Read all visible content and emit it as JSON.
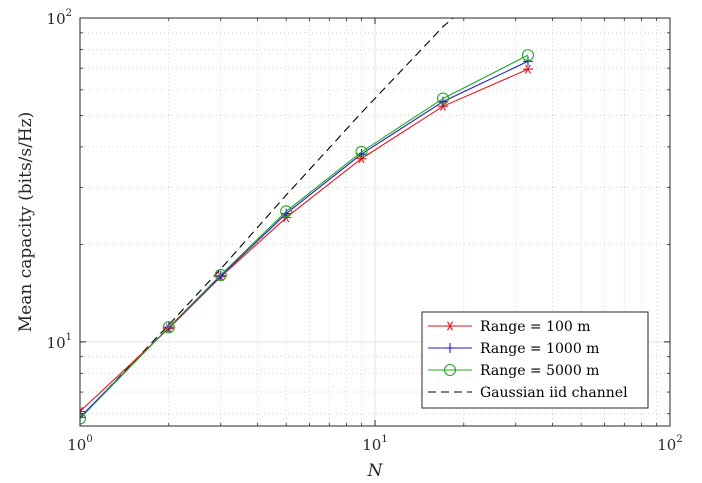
{
  "chart_data": {
    "type": "line",
    "title": "",
    "xlabel": "N",
    "ylabel": "Mean capacity (bits/s/Hz)",
    "xscale": "log",
    "yscale": "log",
    "xlim": [
      1,
      100
    ],
    "ylim": [
      5.5,
      100
    ],
    "grid": true,
    "minor_grid": true,
    "legend_position": "bottom-right",
    "x_ticks": [
      {
        "base": "10",
        "exp": "0",
        "value": 1
      },
      {
        "base": "10",
        "exp": "1",
        "value": 10
      },
      {
        "base": "10",
        "exp": "2",
        "value": 100
      }
    ],
    "y_ticks": [
      {
        "base": "10",
        "exp": "1",
        "value": 10
      },
      {
        "base": "10",
        "exp": "2",
        "value": 100
      }
    ],
    "series": [
      {
        "name": "Range = 100 m",
        "color": "#e8141e",
        "marker": "asterisk",
        "line": "solid",
        "x": [
          1,
          2,
          3,
          5,
          9,
          17,
          33
        ],
        "y": [
          6.1,
          11.0,
          15.9,
          24.2,
          36.8,
          53.4,
          69.5
        ]
      },
      {
        "name": "Range = 1000 m",
        "color": "#1c1ccc",
        "marker": "plus",
        "line": "solid",
        "x": [
          1,
          2,
          3,
          5,
          9,
          17,
          33
        ],
        "y": [
          5.85,
          11.1,
          16.0,
          24.9,
          38.0,
          55.2,
          73.5
        ]
      },
      {
        "name": "Range = 5000 m",
        "color": "#22a822",
        "marker": "circle",
        "line": "solid",
        "x": [
          1,
          2,
          3,
          5,
          9,
          17,
          33
        ],
        "y": [
          5.8,
          11.1,
          16.1,
          25.3,
          38.6,
          56.4,
          76.8
        ]
      },
      {
        "name": "Gaussian iid channel",
        "color": "#000000",
        "marker": "none",
        "line": "dashed",
        "x": [
          1,
          2,
          3,
          5,
          9,
          17,
          18.4
        ],
        "y": [
          5.8,
          11.3,
          16.8,
          28.4,
          51.0,
          94.0,
          100.0
        ]
      }
    ]
  }
}
